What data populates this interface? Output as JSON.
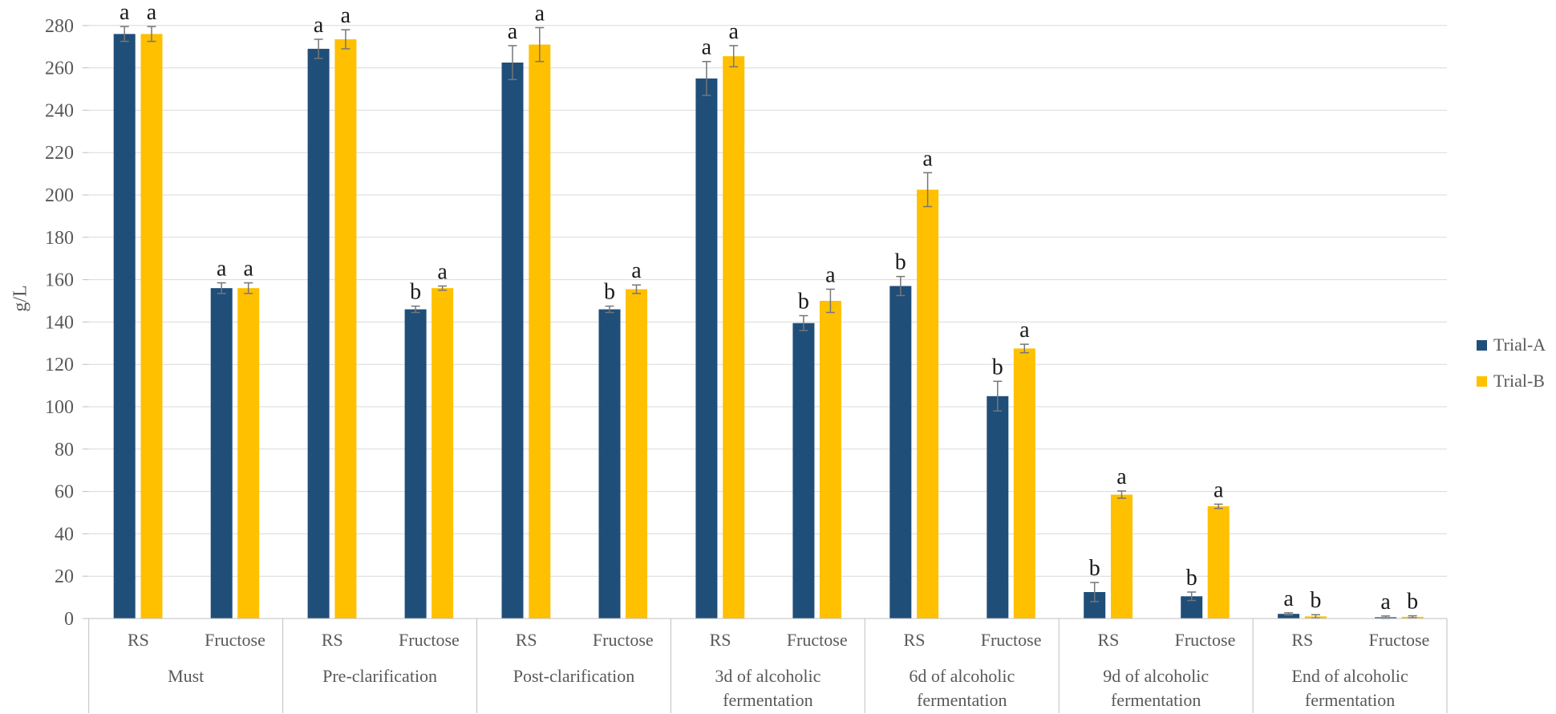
{
  "chart_data": {
    "type": "bar",
    "title": "",
    "ylabel": "g/L",
    "xlabel": "",
    "ylim": [
      0,
      280
    ],
    "ytick_step": 20,
    "grid": true,
    "legend_position": "right",
    "series_names": [
      "Trial-A",
      "Trial-B"
    ],
    "series_colors": [
      "#1F4E79",
      "#FFC000"
    ],
    "error_bar_color": "#767676",
    "gridline_color": "#D9D9D9",
    "axis_line_color": "#BFBFBF",
    "axis_text_color": "#595959",
    "letter_color": "#1a1a1a",
    "groups": [
      {
        "label": "Must",
        "label_lines": [
          "Must"
        ],
        "pairs": [
          {
            "category": "RS",
            "values": [
              276,
              276
            ],
            "errors": [
              3.5,
              3.5
            ],
            "letters": [
              "a",
              "a"
            ]
          },
          {
            "category": "Fructose",
            "values": [
              156,
              156
            ],
            "errors": [
              2.5,
              2.5
            ],
            "letters": [
              "a",
              "a"
            ]
          }
        ]
      },
      {
        "label": "Pre-clarification",
        "label_lines": [
          "Pre-clarification"
        ],
        "pairs": [
          {
            "category": "RS",
            "values": [
              269,
              273.5
            ],
            "errors": [
              4.5,
              4.5
            ],
            "letters": [
              "a",
              "a"
            ]
          },
          {
            "category": "Fructose",
            "values": [
              146,
              156
            ],
            "errors": [
              1.5,
              1
            ],
            "letters": [
              "b",
              "a"
            ]
          }
        ]
      },
      {
        "label": "Post-clarification",
        "label_lines": [
          "Post-clarification"
        ],
        "pairs": [
          {
            "category": "RS",
            "values": [
              262.5,
              271
            ],
            "errors": [
              8,
              8
            ],
            "letters": [
              "a",
              "a"
            ]
          },
          {
            "category": "Fructose",
            "values": [
              146,
              155.5
            ],
            "errors": [
              1.5,
              2
            ],
            "letters": [
              "b",
              "a"
            ]
          }
        ]
      },
      {
        "label": "3d of alcoholic fermentation",
        "label_lines": [
          "3d of alcoholic",
          "fermentation"
        ],
        "pairs": [
          {
            "category": "RS",
            "values": [
              255,
              265.5
            ],
            "errors": [
              8,
              5
            ],
            "letters": [
              "a",
              "a"
            ]
          },
          {
            "category": "Fructose",
            "values": [
              139.5,
              150
            ],
            "errors": [
              3.5,
              5.5
            ],
            "letters": [
              "b",
              "a"
            ]
          }
        ]
      },
      {
        "label": "6d of alcoholic fermentation",
        "label_lines": [
          "6d of alcoholic",
          "fermentation"
        ],
        "pairs": [
          {
            "category": "RS",
            "values": [
              157,
              202.5
            ],
            "errors": [
              4.5,
              8
            ],
            "letters": [
              "b",
              "a"
            ]
          },
          {
            "category": "Fructose",
            "values": [
              105,
              127.5
            ],
            "errors": [
              7,
              2
            ],
            "letters": [
              "b",
              "a"
            ]
          }
        ]
      },
      {
        "label": "9d of alcoholic fermentation",
        "label_lines": [
          "9d of alcoholic",
          "fermentation"
        ],
        "pairs": [
          {
            "category": "RS",
            "values": [
              12.5,
              58.5
            ],
            "errors": [
              4.5,
              1.7
            ],
            "letters": [
              "b",
              "a"
            ]
          },
          {
            "category": "Fructose",
            "values": [
              10.5,
              53
            ],
            "errors": [
              2,
              1
            ],
            "letters": [
              "b",
              "a"
            ]
          }
        ]
      },
      {
        "label": "End of alcoholic fermentation",
        "label_lines": [
          "End of alcoholic",
          "fermentation"
        ],
        "pairs": [
          {
            "category": "RS",
            "values": [
              2.2,
              1
            ],
            "errors": [
              0.5,
              0.8
            ],
            "letters": [
              "a",
              "b"
            ]
          },
          {
            "category": "Fructose",
            "values": [
              0.6,
              0.8
            ],
            "errors": [
              0.6,
              0.5
            ],
            "letters": [
              "a",
              "b"
            ]
          }
        ]
      }
    ]
  }
}
